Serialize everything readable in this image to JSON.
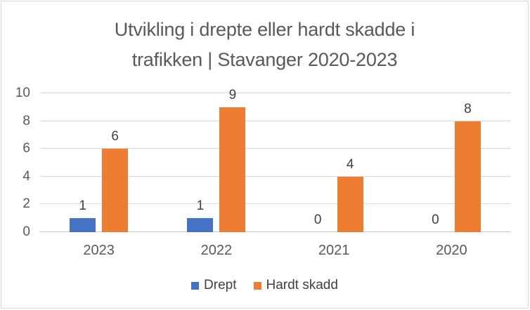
{
  "chart_data": {
    "type": "bar",
    "title": "Utvikling i drepte eller hardt skadde i\ntrafikken | Stavanger 2020-2023",
    "categories": [
      "2023",
      "2022",
      "2021",
      "2020"
    ],
    "series": [
      {
        "name": "Drept",
        "color": "#4472C4",
        "values": [
          1,
          1,
          0,
          0
        ]
      },
      {
        "name": "Hardt skadd",
        "color": "#ED7D31",
        "values": [
          6,
          9,
          4,
          8
        ]
      }
    ],
    "ylim": [
      0,
      10
    ],
    "yticks": [
      0,
      2,
      4,
      6,
      8,
      10
    ],
    "grid": true,
    "data_labels": true,
    "legend_position": "bottom",
    "colors": {
      "title_text": "#595959",
      "axis_text": "#595959",
      "data_label_text": "#404040",
      "gridline": "#d9d9d9",
      "frame_border": "#d8d8d8"
    }
  }
}
